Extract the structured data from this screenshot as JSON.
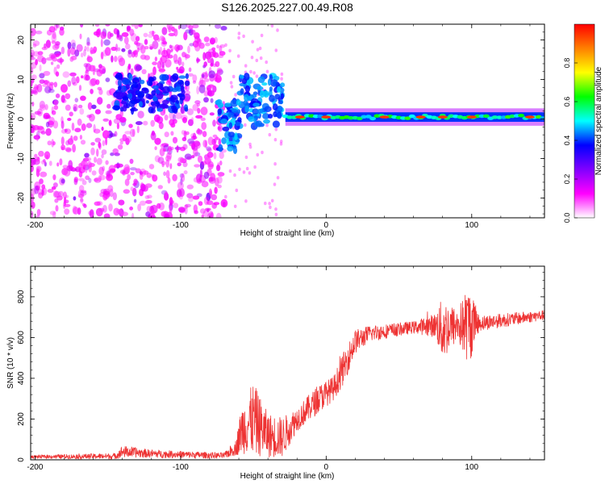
{
  "title": "S126.2025.227.00.49.R08",
  "chart_data": [
    {
      "type": "heatmap",
      "name": "spectrogram",
      "xlabel": "Height of straight line (km)",
      "ylabel": "Frequency (Hz)",
      "xlim": [
        -203,
        150
      ],
      "ylim": [
        -25,
        24
      ],
      "xticks": [
        -200,
        -100,
        0,
        100
      ],
      "yticks": [
        -20,
        -10,
        0,
        10,
        20
      ],
      "colorbar": {
        "label": "Normalized spectral amplitude",
        "range": [
          0.0,
          1.0
        ],
        "ticks": [
          0.0,
          0.2,
          0.4,
          0.6,
          0.8
        ],
        "tick_labels": [
          "0.0",
          "0.2",
          "0.4",
          "0.6",
          "0.8"
        ],
        "colors": [
          "#ffffff",
          "#ff00ff",
          "#8000ff",
          "#0000ff",
          "#00ffff",
          "#00ff00",
          "#ffff00",
          "#ff8000",
          "#ff0000"
        ]
      },
      "regions": [
        {
          "x": [
            -203,
            -70
          ],
          "y": [
            -25,
            24
          ],
          "kind": "noise",
          "level": 0.15
        },
        {
          "x": [
            -145,
            -95
          ],
          "y": [
            2,
            11
          ],
          "kind": "band",
          "level": 0.35
        },
        {
          "x": [
            -75,
            -30
          ],
          "y": [
            -5,
            8
          ],
          "kind": "band",
          "level": 0.4
        },
        {
          "x": [
            -28,
            150
          ],
          "y": [
            -0.5,
            1.5
          ],
          "kind": "line",
          "level": 0.6
        }
      ]
    },
    {
      "type": "line",
      "name": "snr",
      "xlabel": "Height of straight line (km)",
      "ylabel": "SNR (10 * v/v)",
      "xlim": [
        -203,
        150
      ],
      "ylim": [
        0,
        950
      ],
      "xticks": [
        -200,
        -100,
        0,
        100
      ],
      "yticks": [
        0,
        200,
        400,
        600,
        800
      ],
      "color": "#ee3333",
      "envelope": [
        {
          "x": -203,
          "base": 15,
          "noise": 8
        },
        {
          "x": -145,
          "base": 18,
          "noise": 15
        },
        {
          "x": -140,
          "base": 40,
          "noise": 30
        },
        {
          "x": -120,
          "base": 30,
          "noise": 20
        },
        {
          "x": -70,
          "base": 20,
          "noise": 15
        },
        {
          "x": -62,
          "base": 60,
          "noise": 40
        },
        {
          "x": -58,
          "base": 150,
          "noise": 120
        },
        {
          "x": -50,
          "base": 200,
          "noise": 180
        },
        {
          "x": -40,
          "base": 120,
          "noise": 110
        },
        {
          "x": -30,
          "base": 110,
          "noise": 100
        },
        {
          "x": -20,
          "base": 200,
          "noise": 60
        },
        {
          "x": -5,
          "base": 300,
          "noise": 70
        },
        {
          "x": 5,
          "base": 350,
          "noise": 60
        },
        {
          "x": 12,
          "base": 450,
          "noise": 80
        },
        {
          "x": 20,
          "base": 580,
          "noise": 60
        },
        {
          "x": 30,
          "base": 620,
          "noise": 40
        },
        {
          "x": 60,
          "base": 650,
          "noise": 30
        },
        {
          "x": 75,
          "base": 660,
          "noise": 60
        },
        {
          "x": 80,
          "base": 640,
          "noise": 160
        },
        {
          "x": 90,
          "base": 660,
          "noise": 80
        },
        {
          "x": 98,
          "base": 660,
          "noise": 200
        },
        {
          "x": 105,
          "base": 670,
          "noise": 40
        },
        {
          "x": 150,
          "base": 710,
          "noise": 25
        }
      ]
    }
  ]
}
